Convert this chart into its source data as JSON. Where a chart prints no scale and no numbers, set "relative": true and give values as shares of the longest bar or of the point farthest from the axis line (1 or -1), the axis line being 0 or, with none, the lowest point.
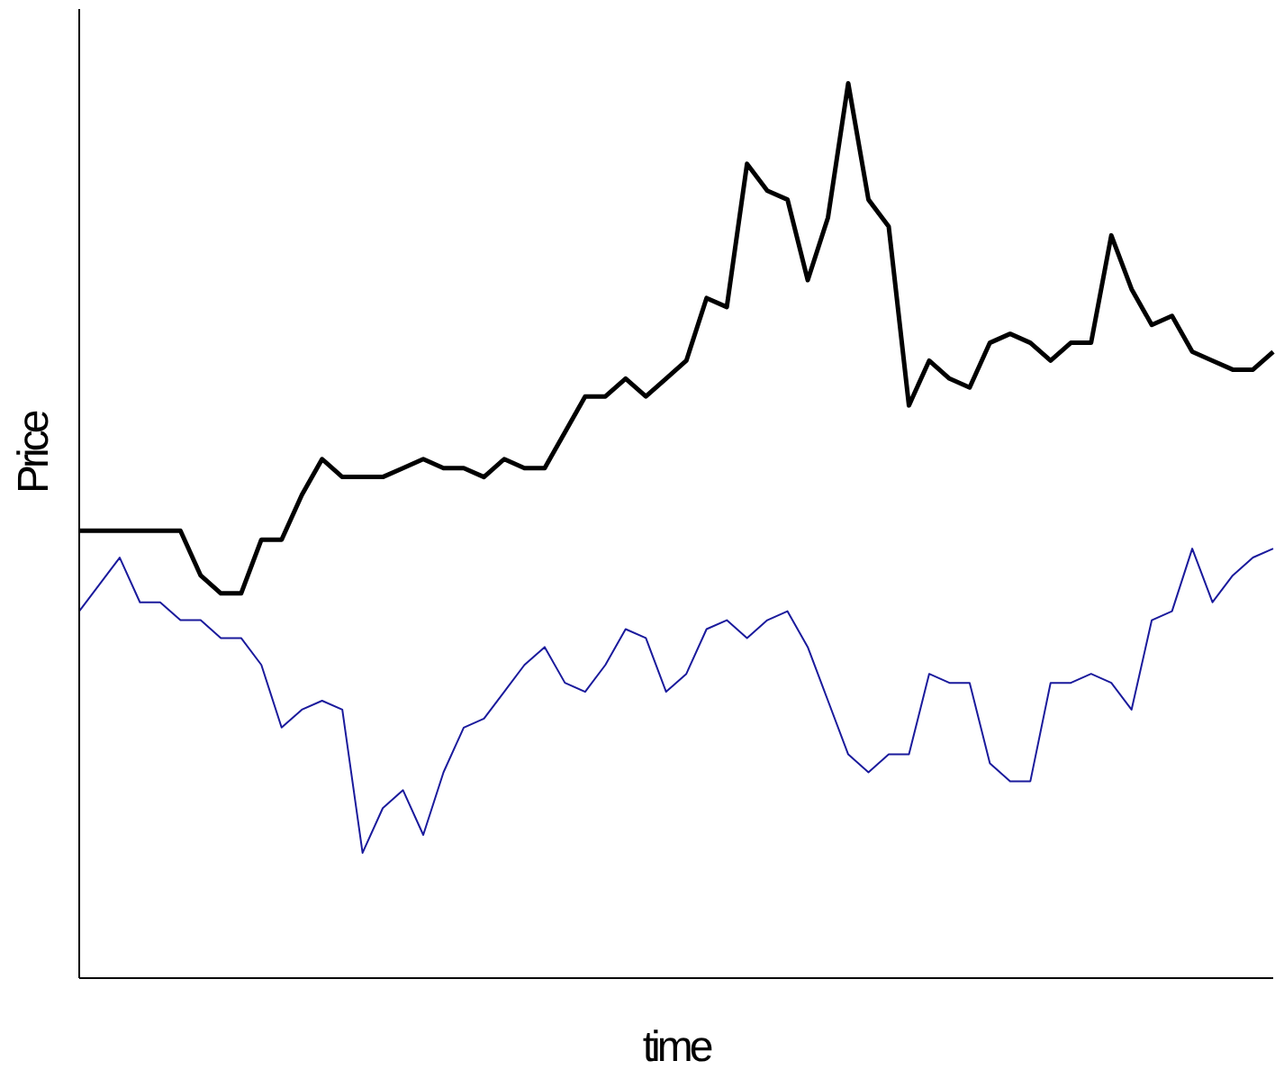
{
  "chart_data": {
    "type": "line",
    "relative": true,
    "xlabel": "time",
    "ylabel": "Price",
    "grid": false,
    "legend": false,
    "marker": "none",
    "line_style": "solid",
    "categories": [
      null,
      null,
      null,
      null,
      null,
      null,
      null,
      null,
      null,
      null,
      null,
      null,
      null,
      null,
      null,
      null,
      null,
      null,
      null,
      null,
      null,
      null,
      null,
      null,
      null,
      null,
      null,
      null,
      null,
      null,
      null,
      null,
      null,
      null,
      null,
      null,
      null,
      null,
      null,
      null,
      null,
      null,
      null,
      null,
      null,
      null,
      null,
      null,
      null,
      null,
      null,
      null,
      null,
      null,
      null,
      null,
      null,
      null,
      null,
      null
    ],
    "series": [
      {
        "color": "#000000",
        "values": [
          0.5,
          0.5,
          0.5,
          0.5,
          0.5,
          0.5,
          0.45,
          0.43,
          0.43,
          0.49,
          0.49,
          0.54,
          0.58,
          0.56,
          0.56,
          0.56,
          0.57,
          0.58,
          0.57,
          0.57,
          0.56,
          0.58,
          0.57,
          0.57,
          0.61,
          0.65,
          0.65,
          0.67,
          0.65,
          0.67,
          0.69,
          0.76,
          0.75,
          0.91,
          0.88,
          0.87,
          0.78,
          0.85,
          1.0,
          0.87,
          0.84,
          0.64,
          0.69,
          0.67,
          0.66,
          0.71,
          0.72,
          0.71,
          0.69,
          0.71,
          0.71,
          0.83,
          0.77,
          0.73,
          0.74,
          0.7,
          0.69,
          0.68,
          0.68,
          0.7
        ]
      },
      {
        "color": "#1a1a9c",
        "values": [
          0.41,
          0.44,
          0.47,
          0.42,
          0.42,
          0.4,
          0.4,
          0.38,
          0.38,
          0.35,
          0.28,
          0.3,
          0.31,
          0.3,
          0.14,
          0.19,
          0.21,
          0.16,
          0.23,
          0.28,
          0.29,
          0.32,
          0.35,
          0.37,
          0.33,
          0.32,
          0.35,
          0.39,
          0.38,
          0.32,
          0.34,
          0.39,
          0.4,
          0.38,
          0.4,
          0.41,
          0.37,
          0.31,
          0.25,
          0.23,
          0.25,
          0.25,
          0.34,
          0.33,
          0.33,
          0.24,
          0.22,
          0.22,
          0.33,
          0.33,
          0.34,
          0.33,
          0.3,
          0.4,
          0.41,
          0.48,
          0.42,
          0.45,
          0.47,
          0.48
        ]
      }
    ]
  }
}
